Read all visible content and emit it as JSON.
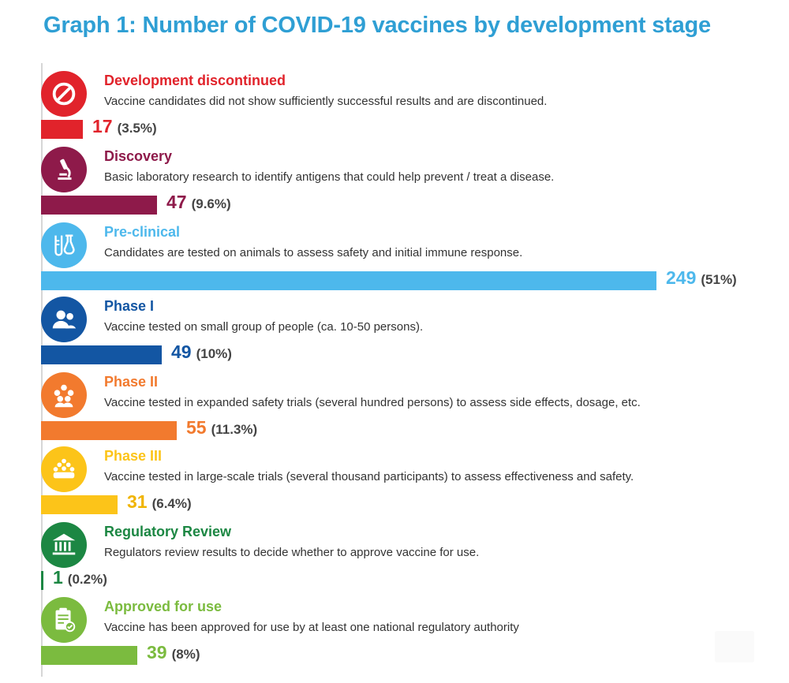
{
  "title": "Graph 1: Number of COVID-19 vaccines by development stage",
  "chart_data": {
    "type": "bar",
    "orientation": "horizontal",
    "title": "Graph 1: Number of COVID-19 vaccines by development stage",
    "categories": [
      "Development discontinued",
      "Discovery",
      "Pre-clinical",
      "Phase I",
      "Phase II",
      "Phase III",
      "Regulatory Review",
      "Approved for use"
    ],
    "values": [
      17,
      47,
      249,
      49,
      55,
      31,
      1,
      39
    ],
    "value_labels": [
      "17",
      "47",
      "249",
      "49",
      "55",
      "31",
      "1",
      "39"
    ],
    "percent_labels": [
      "(3.5%)",
      "(9.6%)",
      "(51%)",
      "(10%)",
      "(11.3%)",
      "(6.4%)",
      "(0.2%)",
      "(8%)"
    ],
    "descriptions": [
      "Vaccine candidates did not show sufficiently successful results and are discontinued.",
      "Basic laboratory research to identify antigens that could help prevent / treat a disease.",
      "Candidates are tested on animals to assess safety and initial immune response.",
      "Vaccine tested on small group of people (ca. 10-50 persons).",
      "Vaccine tested in expanded safety trials (several hundred persons) to assess side effects, dosage, etc.",
      "Vaccine tested in large-scale trials (several thousand participants) to assess effectiveness and safety.",
      "Regulators review results to decide whether to approve vaccine for use.",
      "Vaccine has been approved for use by at least one national regulatory authority"
    ],
    "colors": [
      "#e1232b",
      "#8e1a4a",
      "#4db8ec",
      "#1356a3",
      "#f27a2e",
      "#fcc419",
      "#1c8743",
      "#7bbb3f"
    ],
    "icons": [
      "prohibited-icon",
      "microscope-icon",
      "flask-icon",
      "person-icon",
      "group-icon",
      "crowd-icon",
      "bank-icon",
      "clipboard-check-icon"
    ],
    "xlim": [
      0,
      249
    ],
    "grid": false,
    "legend": "none"
  }
}
